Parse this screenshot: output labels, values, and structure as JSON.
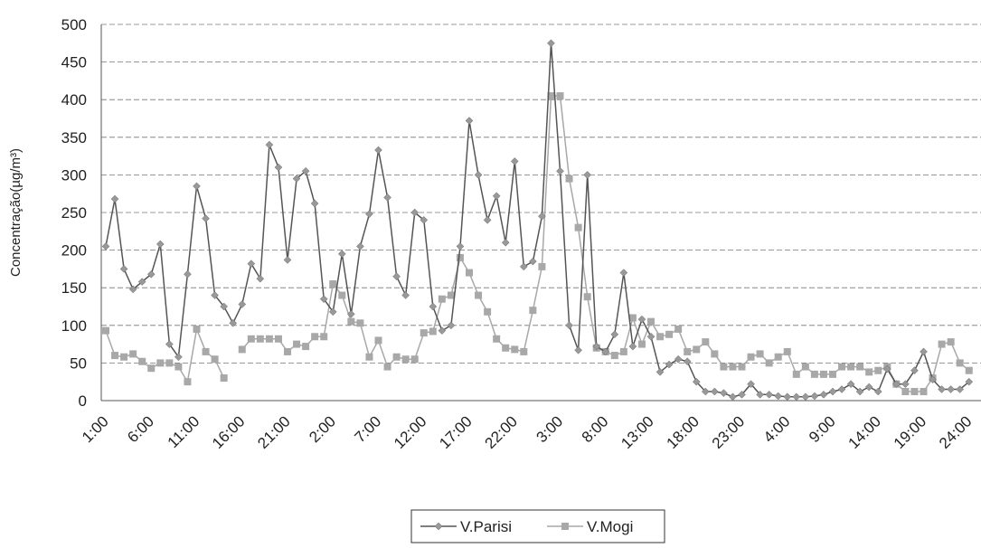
{
  "chart_data": {
    "type": "line",
    "y_label": "Concentração(µg/m³)",
    "categories": [
      "1:00",
      null,
      null,
      null,
      null,
      "6:00",
      null,
      null,
      null,
      null,
      "11:00",
      null,
      null,
      null,
      null,
      "16:00",
      null,
      null,
      null,
      null,
      "21:00",
      null,
      null,
      null,
      null,
      "2:00",
      null,
      null,
      null,
      null,
      "7:00",
      null,
      null,
      null,
      null,
      "12:00",
      null,
      null,
      null,
      null,
      "17:00",
      null,
      null,
      null,
      null,
      "22:00",
      null,
      null,
      null,
      null,
      "3:00",
      null,
      null,
      null,
      null,
      "8:00",
      null,
      null,
      null,
      null,
      "13:00",
      null,
      null,
      null,
      null,
      "18:00",
      null,
      null,
      null,
      null,
      "23:00",
      null,
      null,
      null,
      null,
      "4:00",
      null,
      null,
      null,
      null,
      "9:00",
      null,
      null,
      null,
      null,
      "14:00",
      null,
      null,
      null,
      null,
      "19:00",
      null,
      null,
      null,
      null,
      "24:00"
    ],
    "series": [
      {
        "name": "V.Parisi",
        "color": "#555555",
        "marker_color": "#999999",
        "marker": "diamond",
        "values": [
          205,
          268,
          175,
          148,
          158,
          168,
          208,
          75,
          58,
          168,
          285,
          242,
          140,
          125,
          103,
          128,
          182,
          162,
          340,
          310,
          187,
          295,
          305,
          262,
          135,
          118,
          195,
          115,
          205,
          248,
          333,
          270,
          165,
          140,
          250,
          240,
          125,
          93,
          100,
          205,
          372,
          300,
          240,
          272,
          210,
          318,
          178,
          185,
          245,
          475,
          305,
          100,
          67,
          300,
          72,
          65,
          88,
          170,
          72,
          108,
          85,
          38,
          48,
          55,
          52,
          25,
          12,
          12,
          10,
          5,
          8,
          22,
          8,
          8,
          6,
          5,
          5,
          5,
          6,
          8,
          12,
          15,
          22,
          12,
          18,
          12,
          42,
          22,
          22,
          40,
          65,
          28,
          15,
          15,
          15,
          25
        ]
      },
      {
        "name": "V.Mogi",
        "color": "#a8a8a8",
        "marker_color": "#a8a8a8",
        "marker": "square",
        "values": [
          93,
          60,
          58,
          62,
          52,
          43,
          50,
          50,
          45,
          25,
          95,
          65,
          55,
          30,
          null,
          68,
          82,
          82,
          82,
          82,
          65,
          75,
          72,
          85,
          85,
          155,
          140,
          105,
          103,
          58,
          80,
          45,
          58,
          55,
          55,
          90,
          92,
          135,
          140,
          190,
          170,
          140,
          118,
          82,
          70,
          68,
          65,
          120,
          178,
          405,
          405,
          295,
          230,
          138,
          70,
          65,
          60,
          65,
          110,
          75,
          105,
          85,
          88,
          95,
          65,
          68,
          78,
          62,
          45,
          45,
          45,
          58,
          62,
          50,
          58,
          65,
          35,
          45,
          35,
          35,
          35,
          45,
          45,
          45,
          38,
          40,
          45,
          22,
          12,
          12,
          12,
          30,
          75,
          78,
          50,
          40
        ]
      }
    ],
    "ylim": [
      0,
      500
    ],
    "yticks": [
      0,
      50,
      100,
      150,
      200,
      250,
      300,
      350,
      400,
      450,
      500
    ],
    "grid": true,
    "legend": "bottom"
  }
}
